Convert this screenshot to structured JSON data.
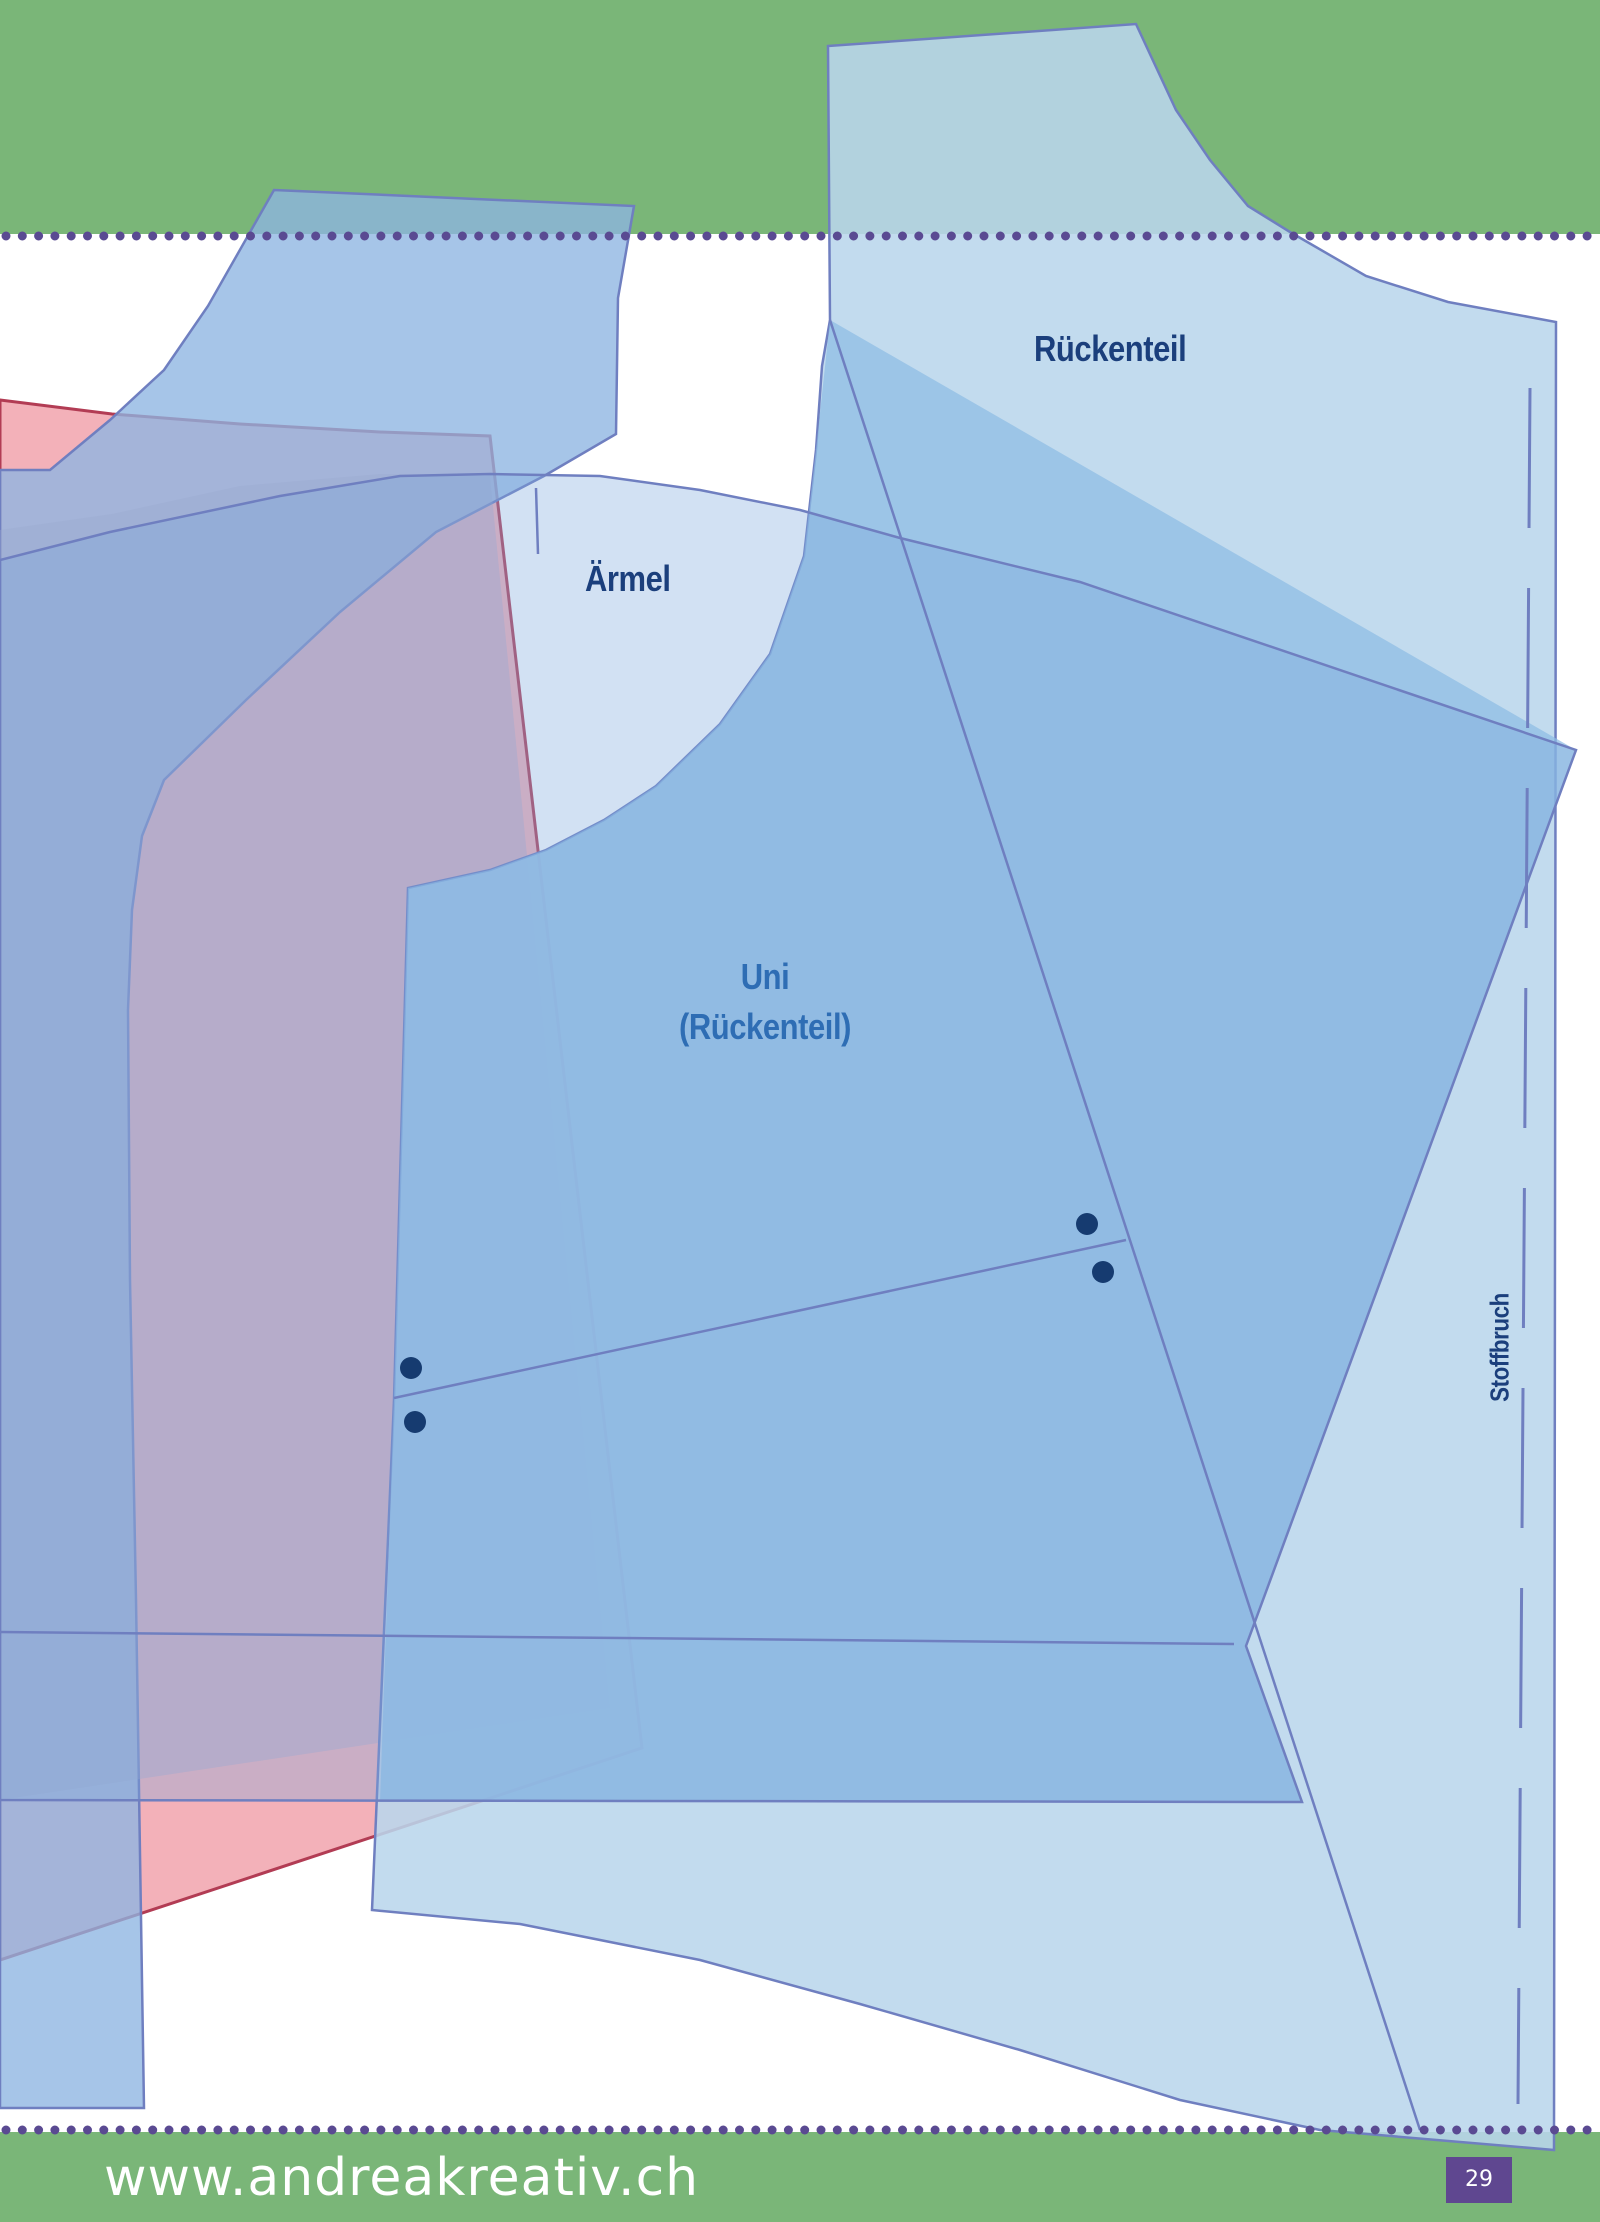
{
  "labels": {
    "back_piece": "Rückenteil",
    "sleeve": "Ärmel",
    "uni_line1": "Uni",
    "uni_line2": "(Rückenteil)",
    "fold": "Stoffbruch"
  },
  "footer": {
    "url": "www.andreakreativ.ch",
    "page_number": "29"
  },
  "colors": {
    "band_green": "#7ab678",
    "dot_border": "#5a4a92",
    "piece_blue_light": "#b9d6ec",
    "piece_blue_mid": "#8dbde4",
    "piece_blue_dark": "#6f9fd8",
    "piece_pink": "#f1a3ad",
    "piece_mauve": "#a99ec0",
    "outline_blue": "#6f7fc0",
    "outline_red": "#b23c54",
    "label_dark_blue": "#1b3f7c",
    "label_mid_blue": "#2e6db4",
    "page_number_bg": "#5f4790"
  }
}
